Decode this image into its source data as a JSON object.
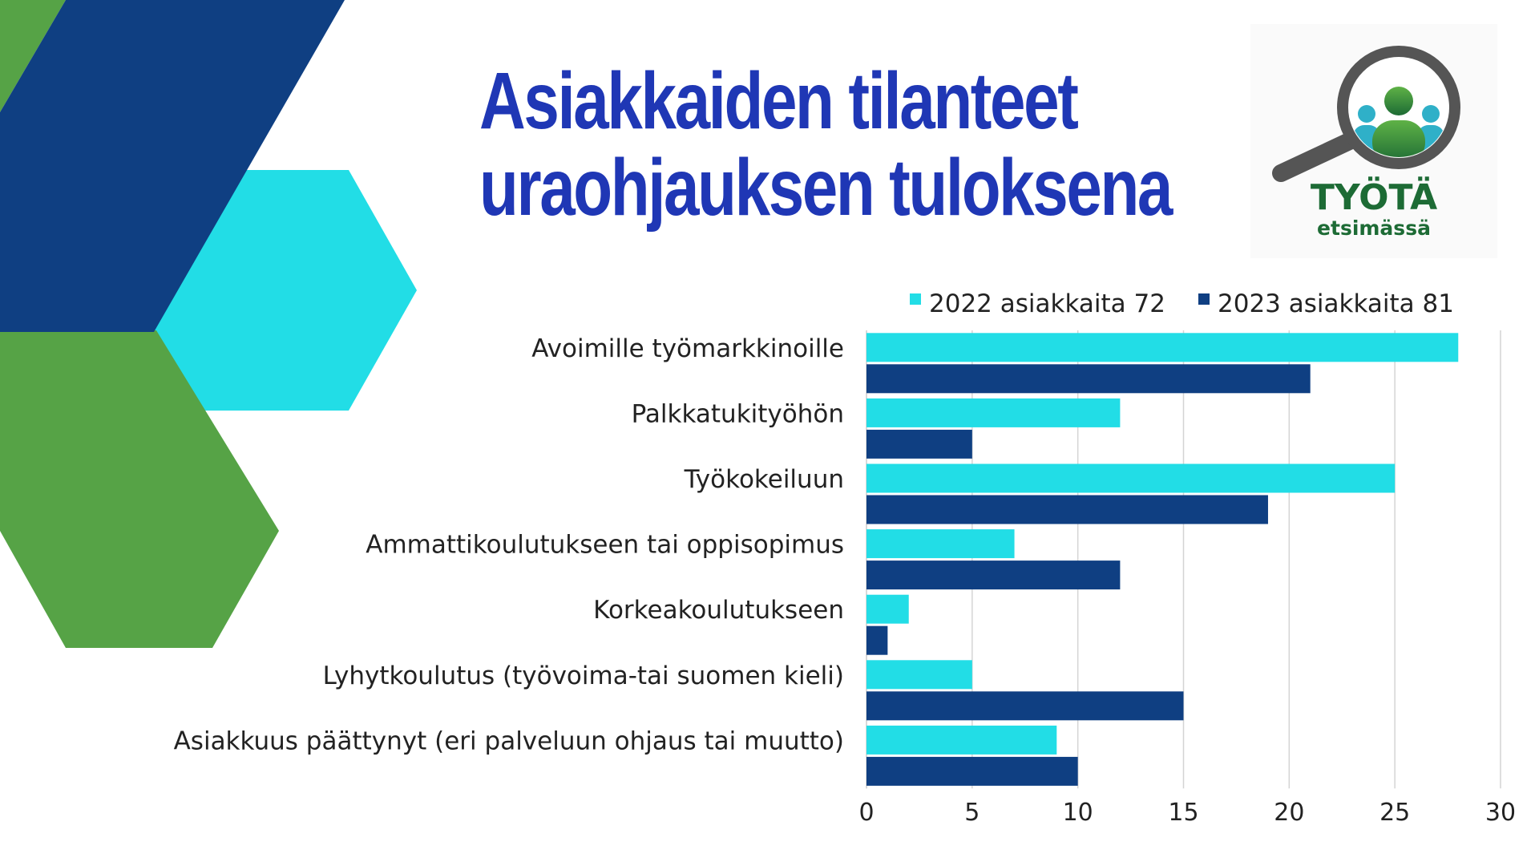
{
  "slide": {
    "title_line1": "Asiakkaiden tilanteet",
    "title_line2": "uraohjauksen tuloksena",
    "title_color": "#1f37b5"
  },
  "logo": {
    "line1": "TYÖTÄ",
    "line2": "etsimässä",
    "text_color": "#1d6b35"
  },
  "colors": {
    "navy": "#0f3f82",
    "cyan": "#22dde6",
    "green": "#56a346"
  },
  "chart_data": {
    "type": "bar",
    "orientation": "horizontal",
    "categories": [
      "Avoimille työmarkkinoille",
      "Palkkatukityöhön",
      "Työkokeiluun",
      "Ammattikoulutukseen tai oppisopimus",
      "Korkeakoulutukseen",
      "Lyhytkoulutus (työvoima-tai suomen kieli)",
      "Asiakkuus päättynyt (eri palveluun ohjaus tai muutto)"
    ],
    "series": [
      {
        "name": "2022 asiakkaita 72",
        "color": "#22dde6",
        "values": [
          28,
          12,
          25,
          7,
          2,
          5,
          9
        ]
      },
      {
        "name": "2023 asiakkaita 81",
        "color": "#0f3f82",
        "values": [
          21,
          5,
          19,
          12,
          1,
          15,
          10
        ]
      }
    ],
    "xlim": [
      0,
      30
    ],
    "xticks": [
      0,
      5,
      10,
      15,
      20,
      25,
      30
    ],
    "grid": true,
    "legend_position": "top"
  }
}
